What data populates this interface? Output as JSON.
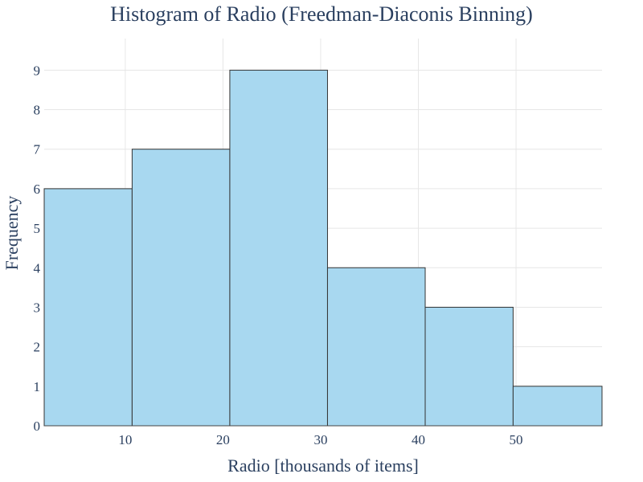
{
  "chart_data": {
    "type": "bar",
    "title": "Histogram of Radio (Freedman-Diaconis Binning)",
    "xlabel": "Radio [thousands of items]",
    "ylabel": "Frequency",
    "bins": [
      {
        "x0": 1.7,
        "x1": 10.7,
        "count": 6
      },
      {
        "x0": 10.7,
        "x1": 20.7,
        "count": 7
      },
      {
        "x0": 20.7,
        "x1": 30.7,
        "count": 9
      },
      {
        "x0": 30.7,
        "x1": 40.7,
        "count": 4
      },
      {
        "x0": 40.7,
        "x1": 49.7,
        "count": 3
      },
      {
        "x0": 49.7,
        "x1": 58.8,
        "count": 1
      }
    ],
    "xlim": [
      1.7,
      58.8
    ],
    "ylim": [
      0,
      9.8
    ],
    "xticks": [
      10,
      20,
      30,
      40,
      50
    ],
    "yticks": [
      0,
      1,
      2,
      3,
      4,
      5,
      6,
      7,
      8,
      9
    ],
    "grid": true,
    "legend": "none",
    "bar_color": "#a8d8f0",
    "bar_edge_color": "#333333"
  }
}
